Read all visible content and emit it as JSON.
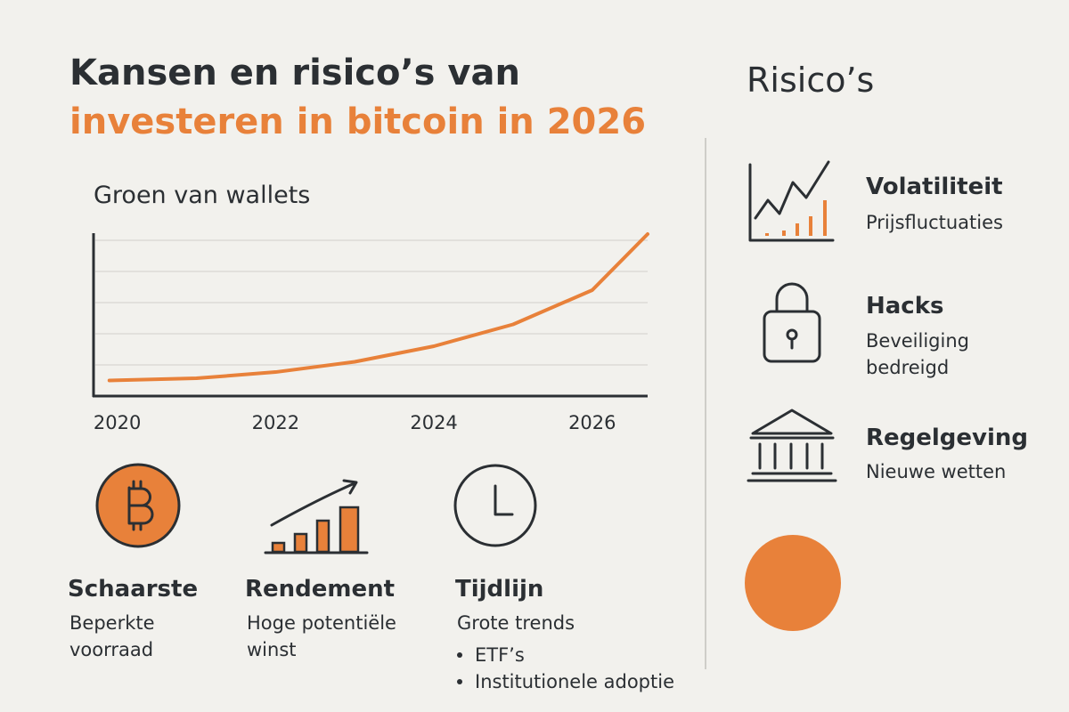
{
  "header": {
    "title_line1": "Kansen en risico’s van",
    "title_line2": "investeren in bitcoin in 2026"
  },
  "chart_data": {
    "type": "line",
    "title": "Groen van wallets",
    "x": [
      2019.9,
      2021,
      2022,
      2023,
      2024,
      2025,
      2026,
      2026.7
    ],
    "values": [
      0.5,
      0.57,
      0.77,
      1.1,
      1.6,
      2.3,
      3.4,
      5.2
    ],
    "color": "#e8813a",
    "xlim": [
      2019.7,
      2026.7
    ],
    "xticks": [
      2020,
      2022,
      2024,
      2026
    ],
    "ylim": [
      0,
      5
    ]
  },
  "opportunities": [
    {
      "title": "Schaarste",
      "lines": [
        "Beperkte",
        "voorraad"
      ]
    },
    {
      "title": "Rendement",
      "lines": [
        "Hoge potentiële",
        "winst"
      ]
    },
    {
      "title": "Tijdlijn",
      "lines": [
        "Grote trends"
      ],
      "bullets": [
        "ETF’s",
        "Institutionele adoptie"
      ]
    }
  ],
  "risks": {
    "title": "Risico’s",
    "items": [
      {
        "title": "Volatiliteit",
        "lines": [
          "Prijsfluctuaties"
        ]
      },
      {
        "title": "Hacks",
        "lines": [
          "Beveiliging",
          "bedreigd"
        ]
      },
      {
        "title": "Regelgeving",
        "lines": [
          "Nieuwe wetten"
        ]
      }
    ]
  }
}
